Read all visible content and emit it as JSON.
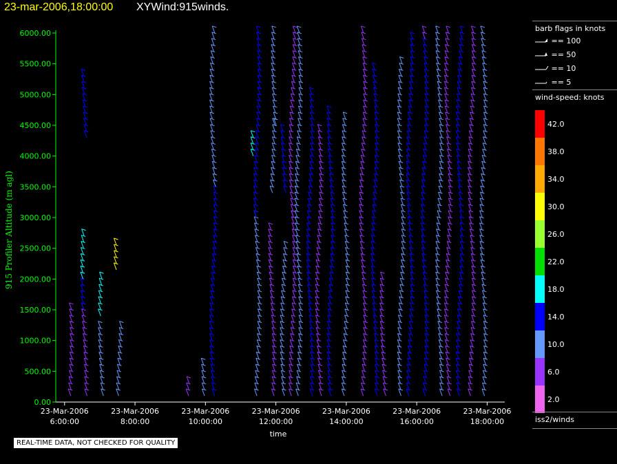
{
  "header": {
    "date_label": "23-mar-2006,18:00:00",
    "title": "XYWind:915winds."
  },
  "legend": {
    "barb_title": "barb flags in knots",
    "flags": [
      "== 100",
      "== 50",
      "== 10",
      "== 5"
    ],
    "speed_title": "wind-speed: knots",
    "color_scale": [
      {
        "label": "42.0",
        "color": "#ff0000"
      },
      {
        "label": "38.0",
        "color": "#ff7700"
      },
      {
        "label": "34.0",
        "color": "#ffaa00"
      },
      {
        "label": "30.0",
        "color": "#ffff00"
      },
      {
        "label": "26.0",
        "color": "#99ff33"
      },
      {
        "label": "22.0",
        "color": "#00dd00"
      },
      {
        "label": "18.0",
        "color": "#00ffff"
      },
      {
        "label": "14.0",
        "color": "#0000ff"
      },
      {
        "label": "10.0",
        "color": "#6699ff"
      },
      {
        "label": "6.0",
        "color": "#9933ff"
      },
      {
        "label": "2.0",
        "color": "#ee66ee"
      }
    ],
    "dataset": "iss2/winds"
  },
  "notice": "REAL-TIME DATA, NOT CHECKED FOR QUALITY",
  "chart_data": {
    "type": "scatter",
    "title": "XYWind:915winds.",
    "xlabel": "time",
    "ylabel": "915 Profiler Altitude (m agl)",
    "ylim": [
      0,
      6000
    ],
    "y_ticks": [
      "0.00",
      "500.00",
      "1000.00",
      "1500.00",
      "2000.00",
      "2500.00",
      "3000.00",
      "3500.00",
      "4000.00",
      "4500.00",
      "5000.00",
      "5500.00",
      "6000.00"
    ],
    "x_ticks": [
      {
        "date": "23-Mar-2006",
        "time": "6:00:00"
      },
      {
        "date": "23-Mar-2006",
        "time": "8:00:00"
      },
      {
        "date": "23-Mar-2006",
        "time": "10:00:00"
      },
      {
        "date": "23-Mar-2006",
        "time": "12:00:00"
      },
      {
        "date": "23-Mar-2006",
        "time": "14:00:00"
      },
      {
        "date": "23-Mar-2006",
        "time": "16:00:00"
      },
      {
        "date": "23-Mar-2006",
        "time": "18:00:00"
      }
    ],
    "xlim": [
      "23-Mar-2006 5:45:00",
      "23-Mar-2006 18:30:00"
    ],
    "profiles": [
      {
        "time": "6:10",
        "segments": [
          {
            "y0": 100,
            "y1": 1550,
            "color": "#9933ff"
          }
        ]
      },
      {
        "time": "6:35",
        "segments": [
          {
            "y0": 100,
            "y1": 1500,
            "color": "#9933ff"
          },
          {
            "y0": 1500,
            "y1": 2000,
            "color": "#0000ff"
          },
          {
            "y0": 2000,
            "y1": 2700,
            "color": "#00ffff"
          },
          {
            "y0": 4300,
            "y1": 5350,
            "color": "#0000ff"
          }
        ]
      },
      {
        "time": "7:05",
        "segments": [
          {
            "y0": 100,
            "y1": 1200,
            "color": "#6699ff"
          },
          {
            "y0": 1400,
            "y1": 2050,
            "color": "#00ffff"
          }
        ]
      },
      {
        "time": "7:25",
        "segments": [
          {
            "y0": 2150,
            "y1": 2600,
            "color": "#ffff00"
          }
        ]
      },
      {
        "time": "7:35",
        "segments": [
          {
            "y0": 100,
            "y1": 1250,
            "color": "#6699ff"
          }
        ]
      },
      {
        "time": "9:30",
        "segments": [
          {
            "y0": 100,
            "y1": 350,
            "color": "#9933ff"
          }
        ]
      },
      {
        "time": "9:55",
        "segments": [
          {
            "y0": 100,
            "y1": 650,
            "color": "#6699ff"
          }
        ]
      },
      {
        "time": "10:15",
        "segments": [
          {
            "y0": 100,
            "y1": 3500,
            "color": "#0000ff"
          },
          {
            "y0": 3500,
            "y1": 6000,
            "color": "#6699ff"
          }
        ]
      },
      {
        "time": "11:25",
        "segments": [
          {
            "y0": 4000,
            "y1": 4300,
            "color": "#00ffff"
          }
        ]
      },
      {
        "time": "11:30",
        "segments": [
          {
            "y0": 100,
            "y1": 3000,
            "color": "#6699ff"
          },
          {
            "y0": 3000,
            "y1": 6000,
            "color": "#0000ff"
          }
        ]
      },
      {
        "time": "11:55",
        "segments": [
          {
            "y0": 100,
            "y1": 2800,
            "color": "#9933ff"
          },
          {
            "y0": 3400,
            "y1": 4500,
            "color": "#6699ff"
          }
        ]
      },
      {
        "time": "12:00",
        "segments": [
          {
            "y0": 4500,
            "y1": 6000,
            "color": "#6699ff"
          }
        ]
      },
      {
        "time": "12:15",
        "segments": [
          {
            "y0": 100,
            "y1": 2500,
            "color": "#6699ff"
          },
          {
            "y0": 3400,
            "y1": 4400,
            "color": "#0000ff"
          }
        ]
      },
      {
        "time": "12:30",
        "segments": [
          {
            "y0": 100,
            "y1": 3000,
            "color": "#9933ff"
          },
          {
            "y0": 3000,
            "y1": 6000,
            "color": "#9933ff"
          }
        ]
      },
      {
        "time": "12:40",
        "segments": [
          {
            "y0": 100,
            "y1": 3400,
            "color": "#6699ff"
          },
          {
            "y0": 3400,
            "y1": 6000,
            "color": "#6699ff"
          }
        ]
      },
      {
        "time": "13:00",
        "segments": [
          {
            "y0": 100,
            "y1": 5000,
            "color": "#0000ff"
          }
        ]
      },
      {
        "time": "13:15",
        "segments": [
          {
            "y0": 100,
            "y1": 4400,
            "color": "#9933ff"
          }
        ]
      },
      {
        "time": "13:35",
        "segments": [
          {
            "y0": 100,
            "y1": 4700,
            "color": "#0000ff"
          }
        ]
      },
      {
        "time": "14:00",
        "segments": [
          {
            "y0": 100,
            "y1": 4600,
            "color": "#6699ff"
          }
        ]
      },
      {
        "time": "14:30",
        "segments": [
          {
            "y0": 100,
            "y1": 6000,
            "color": "#9933ff"
          }
        ]
      },
      {
        "time": "14:50",
        "segments": [
          {
            "y0": 100,
            "y1": 5400,
            "color": "#0000ff"
          }
        ]
      },
      {
        "time": "15:05",
        "segments": [
          {
            "y0": 100,
            "y1": 2000,
            "color": "#9933ff"
          }
        ]
      },
      {
        "time": "15:35",
        "segments": [
          {
            "y0": 100,
            "y1": 5500,
            "color": "#6699ff"
          }
        ]
      },
      {
        "time": "15:50",
        "segments": [
          {
            "y0": 100,
            "y1": 5900,
            "color": "#0000ff"
          }
        ]
      },
      {
        "time": "16:15",
        "segments": [
          {
            "y0": 100,
            "y1": 5900,
            "color": "#0000ff"
          },
          {
            "y0": 5900,
            "y1": 6000,
            "color": "#9933ff"
          }
        ]
      },
      {
        "time": "16:40",
        "segments": [
          {
            "y0": 100,
            "y1": 6000,
            "color": "#6699ff"
          }
        ]
      },
      {
        "time": "16:55",
        "segments": [
          {
            "y0": 100,
            "y1": 6000,
            "color": "#9933ff"
          }
        ]
      },
      {
        "time": "17:15",
        "segments": [
          {
            "y0": 100,
            "y1": 6000,
            "color": "#0000ff"
          }
        ]
      },
      {
        "time": "17:35",
        "segments": [
          {
            "y0": 100,
            "y1": 6000,
            "color": "#9933ff"
          }
        ]
      },
      {
        "time": "17:55",
        "segments": [
          {
            "y0": 100,
            "y1": 6000,
            "color": "#6699ff"
          }
        ]
      }
    ]
  }
}
